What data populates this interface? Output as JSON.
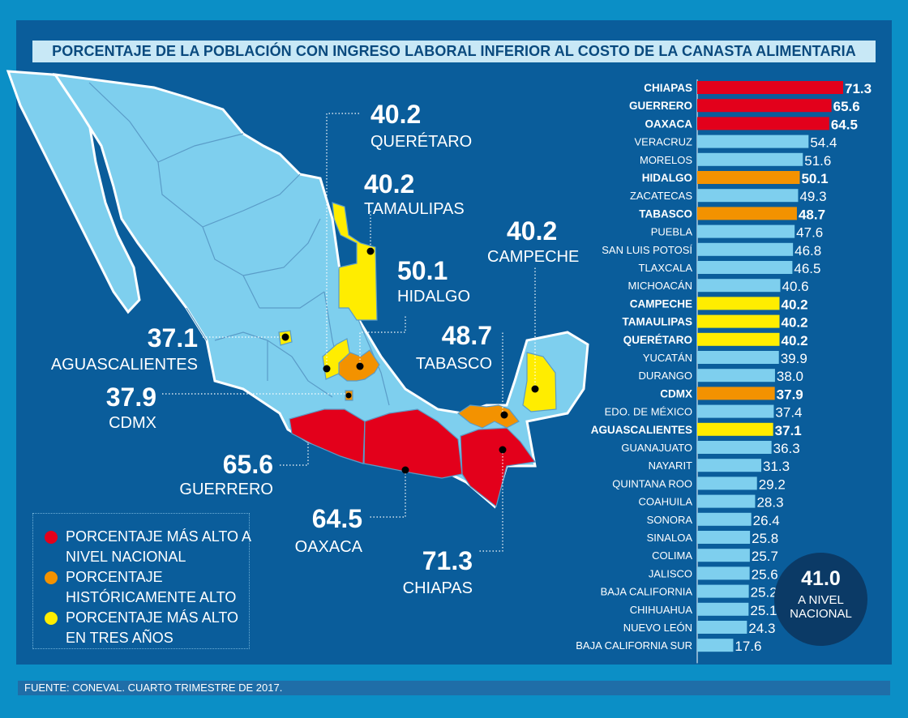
{
  "title": "PORCENTAJE DE LA POBLACIÓN CON INGRESO LABORAL INFERIOR AL COSTO DE LA CANASTA ALIMENTARIA",
  "source": "FUENTE: CONEVAL. CUARTO TRIMESTRE DE 2017.",
  "colors": {
    "panel": "#0a5d9b",
    "red": "#e3001b",
    "orange": "#f39200",
    "yellow": "#ffed00",
    "lightblue": "#7ecfee",
    "mapfill": "#7ecfee"
  },
  "national": {
    "value": "41.0",
    "label": "A NIVEL NACIONAL"
  },
  "legend": [
    {
      "color": "#e3001b",
      "text": "PORCENTAJE MÁS ALTO A NIVEL NACIONAL"
    },
    {
      "color": "#f39200",
      "text": "PORCENTAJE HISTÓRICAMENTE ALTO"
    },
    {
      "color": "#ffed00",
      "text": "PORCENTAJE MÁS ALTO EN TRES AÑOS"
    }
  ],
  "callouts": [
    {
      "value": "40.2",
      "name": "QUERÉTARO"
    },
    {
      "value": "40.2",
      "name": "TAMAULIPAS"
    },
    {
      "value": "50.1",
      "name": "HIDALGO"
    },
    {
      "value": "40.2",
      "name": "CAMPECHE"
    },
    {
      "value": "37.1",
      "name": "AGUASCALIENTES"
    },
    {
      "value": "48.7",
      "name": "TABASCO"
    },
    {
      "value": "37.9",
      "name": "CDMX"
    },
    {
      "value": "65.6",
      "name": "GUERRERO"
    },
    {
      "value": "64.5",
      "name": "OAXACA"
    },
    {
      "value": "71.3",
      "name": "CHIAPAS"
    }
  ],
  "chart_data": {
    "type": "bar",
    "orientation": "horizontal",
    "title": "PORCENTAJE DE LA POBLACIÓN CON INGRESO LABORAL INFERIOR AL COSTO DE LA CANASTA ALIMENTARIA",
    "xlim": [
      0,
      71.3
    ],
    "categories": [
      "CHIAPAS",
      "GUERRERO",
      "OAXACA",
      "VERACRUZ",
      "MORELOS",
      "HIDALGO",
      "ZACATECAS",
      "TABASCO",
      "PUEBLA",
      "SAN LUIS POTOSÍ",
      "TLAXCALA",
      "MICHOACÁN",
      "CAMPECHE",
      "TAMAULIPAS",
      "QUERÉTARO",
      "YUCATÁN",
      "DURANGO",
      "CDMX",
      "EDO. DE MÉXICO",
      "AGUASCALIENTES",
      "GUANAJUATO",
      "NAYARIT",
      "QUINTANA ROO",
      "COAHUILA",
      "SONORA",
      "SINALOA",
      "COLIMA",
      "JALISCO",
      "BAJA CALIFORNIA",
      "CHIHUAHUA",
      "NUEVO LEÓN",
      "BAJA CALIFORNIA SUR"
    ],
    "value_labels": [
      "71.3",
      "65.6",
      "64.5",
      "54.4",
      "51.6",
      "50.1",
      "49.3",
      "48.7",
      "47.6",
      "46.8",
      "46.5",
      "40.6",
      "40.2",
      "40.2",
      "40.2",
      "39.9",
      "38.0",
      "37.9",
      "37.4",
      "37.1",
      "36.3",
      "31.3",
      "29.2",
      "28.3",
      "26.4",
      "25.8",
      "25.7",
      "25.6",
      "25.2",
      "25.1",
      "24.3",
      "17.6"
    ],
    "values": [
      71.3,
      65.6,
      64.5,
      54.4,
      51.6,
      50.1,
      49.3,
      48.7,
      47.6,
      46.8,
      46.5,
      40.6,
      40.2,
      40.2,
      40.2,
      39.9,
      38.0,
      37.9,
      37.4,
      37.1,
      36.3,
      31.3,
      29.2,
      28.3,
      26.4,
      25.8,
      25.7,
      25.6,
      25.2,
      25.1,
      24.3,
      17.6
    ],
    "highlight": [
      "red",
      "red",
      "red",
      "",
      "",
      "orange",
      "",
      "orange",
      "",
      "",
      "",
      "",
      "yellow",
      "yellow",
      "yellow",
      "",
      "",
      "orange",
      "",
      "yellow",
      "",
      "",
      "",
      "",
      "",
      "",
      "",
      "",
      "",
      "",
      "",
      ""
    ]
  }
}
